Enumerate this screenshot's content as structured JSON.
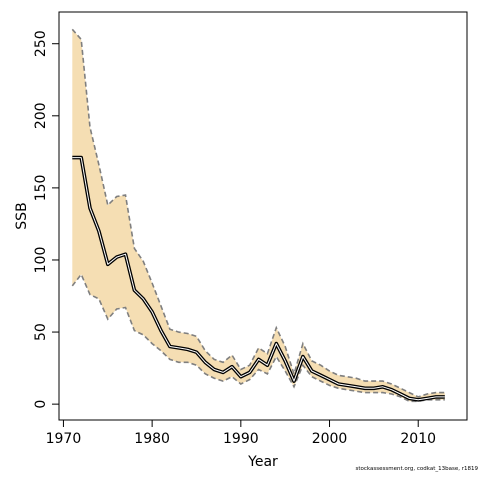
{
  "chart_data": {
    "type": "line",
    "xlabel": "Year",
    "ylabel": "SSB",
    "xlim": [
      1969.5,
      2015.5
    ],
    "ylim": [
      -11,
      272
    ],
    "x_ticks": [
      1970,
      1980,
      1990,
      2000,
      2010
    ],
    "y_ticks": [
      0,
      50,
      100,
      150,
      200,
      250
    ],
    "grid": false,
    "colors": {
      "band": "#f5deb3",
      "line": "#000000",
      "bounds": "#7f7f7f"
    },
    "series": [
      {
        "x": [
          1971,
          1972,
          1973,
          1974,
          1975,
          1976,
          1977,
          1978,
          1979,
          1980,
          1981,
          1982,
          1983,
          1984,
          1985,
          1986,
          1987,
          1988,
          1989,
          1990,
          1991,
          1992,
          1993,
          1994,
          1995,
          1996,
          1997,
          1998,
          1999,
          2000,
          2001,
          2002,
          2003,
          2004,
          2005,
          2006,
          2007,
          2008,
          2009,
          2010,
          2011,
          2012,
          2013
        ],
        "estimate": [
          171,
          171,
          136,
          120,
          97,
          102,
          104,
          79,
          73,
          64,
          51,
          40,
          39,
          38,
          36,
          29,
          24,
          22,
          26,
          19,
          22,
          31,
          27,
          42,
          30,
          16,
          33,
          23,
          20,
          17,
          14,
          13,
          12,
          11,
          11,
          12,
          10,
          7,
          4,
          3,
          4,
          5,
          5
        ],
        "upper": [
          260,
          253,
          192,
          166,
          138,
          144,
          145,
          108,
          99,
          84,
          68,
          52,
          50,
          49,
          47,
          37,
          31,
          29,
          34,
          24,
          27,
          39,
          35,
          53,
          40,
          21,
          42,
          30,
          27,
          23,
          20,
          19,
          18,
          16,
          16,
          16,
          14,
          11,
          8,
          5,
          7,
          8,
          8
        ],
        "lower": [
          82,
          90,
          76,
          73,
          59,
          66,
          67,
          51,
          48,
          42,
          37,
          31,
          29,
          29,
          27,
          21,
          18,
          16,
          19,
          14,
          17,
          24,
          21,
          33,
          23,
          12,
          27,
          19,
          16,
          13,
          11,
          10,
          9,
          8,
          8,
          8,
          7,
          5,
          2,
          2,
          3,
          3,
          3
        ]
      }
    ]
  },
  "footer": "stockassessment.org, codkat_13base, r1819"
}
